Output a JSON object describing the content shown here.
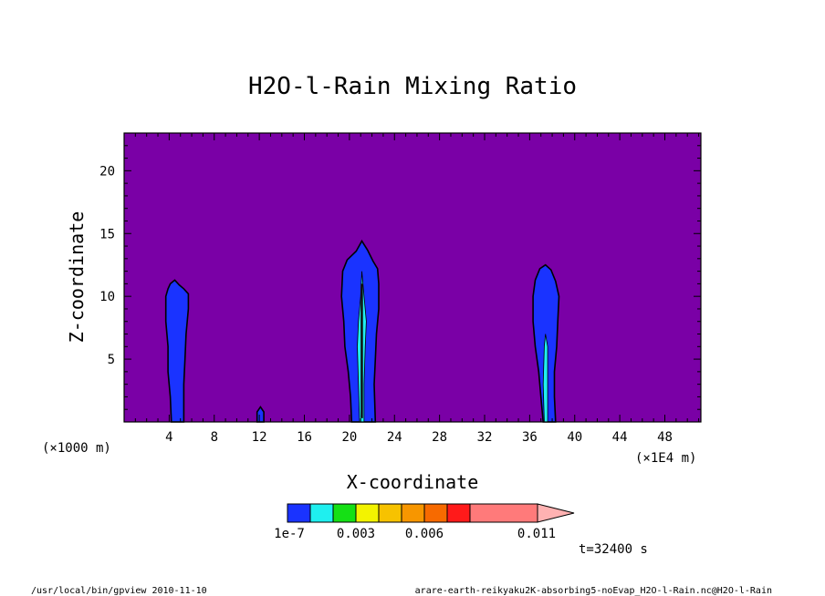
{
  "chart_data": {
    "type": "heatmap",
    "title": "H2O-l-Rain Mixing Ratio",
    "xlabel": "X-coordinate",
    "ylabel": "Z-coordinate",
    "x_unit_left": "(×1000 m)",
    "x_unit_right": "(×1E4 m)",
    "xlim": [
      0,
      51.2
    ],
    "ylim": [
      0,
      23
    ],
    "x_ticks": [
      4,
      8,
      12,
      16,
      20,
      24,
      28,
      32,
      36,
      40,
      44,
      48
    ],
    "x_tick_labels": [
      "4",
      "8",
      "12",
      "16",
      "20",
      "24",
      "28",
      "32",
      "36",
      "40",
      "44",
      "48"
    ],
    "y_ticks": [
      5,
      10,
      15,
      20
    ],
    "y_tick_labels": [
      "5",
      "10",
      "15",
      "20"
    ],
    "time_label": "t=32400 s",
    "colorbar": {
      "label_values": [
        "1e-7",
        "0.003",
        "0.006",
        "0.011"
      ],
      "colors": [
        "#1a33ff",
        "#1fefef",
        "#15e015",
        "#f3f300",
        "#f7c200",
        "#f79600",
        "#f76a00",
        "#ff1a1a",
        "#ff7a7a",
        "#ffb2b2"
      ]
    },
    "background_color": "#7a00a6",
    "contour_level_value": 1e-07,
    "plumes": [
      {
        "name": "plume-1",
        "center_x": 4.7,
        "top_z": 11.3,
        "outline": [
          [
            4.2,
            0
          ],
          [
            4.1,
            2
          ],
          [
            3.9,
            4
          ],
          [
            3.9,
            6
          ],
          [
            3.7,
            8
          ],
          [
            3.7,
            10
          ],
          [
            3.9,
            10.6
          ],
          [
            4.1,
            11
          ],
          [
            4.5,
            11.3
          ],
          [
            4.9,
            10.9
          ],
          [
            5.3,
            10.6
          ],
          [
            5.7,
            10.2
          ],
          [
            5.7,
            9
          ],
          [
            5.5,
            7
          ],
          [
            5.4,
            5
          ],
          [
            5.3,
            3
          ],
          [
            5.3,
            0
          ]
        ]
      },
      {
        "name": "plume-2",
        "center_x": 12.1,
        "top_z": 1.2,
        "outline": [
          [
            11.8,
            0
          ],
          [
            11.8,
            0.8
          ],
          [
            12.1,
            1.2
          ],
          [
            12.4,
            0.8
          ],
          [
            12.4,
            0
          ]
        ]
      },
      {
        "name": "plume-3",
        "center_x": 21.2,
        "top_z": 14.4,
        "outline": [
          [
            20.2,
            0
          ],
          [
            20.1,
            2
          ],
          [
            19.9,
            4
          ],
          [
            19.6,
            6
          ],
          [
            19.5,
            8
          ],
          [
            19.3,
            10
          ],
          [
            19.4,
            12
          ],
          [
            19.8,
            12.9
          ],
          [
            20.6,
            13.6
          ],
          [
            21.1,
            14.4
          ],
          [
            21.6,
            13.7
          ],
          [
            22.1,
            12.8
          ],
          [
            22.5,
            12.2
          ],
          [
            22.6,
            11
          ],
          [
            22.6,
            9
          ],
          [
            22.4,
            7
          ],
          [
            22.3,
            5
          ],
          [
            22.2,
            3
          ],
          [
            22.3,
            0
          ]
        ]
      },
      {
        "name": "plume-4",
        "center_x": 37.4,
        "top_z": 12.5,
        "outline": [
          [
            37.2,
            0
          ],
          [
            37.0,
            2
          ],
          [
            36.8,
            4
          ],
          [
            36.5,
            6
          ],
          [
            36.3,
            8
          ],
          [
            36.3,
            10
          ],
          [
            36.5,
            11.3
          ],
          [
            36.9,
            12.2
          ],
          [
            37.4,
            12.5
          ],
          [
            37.9,
            12.1
          ],
          [
            38.3,
            11.2
          ],
          [
            38.6,
            10
          ],
          [
            38.5,
            8
          ],
          [
            38.4,
            6
          ],
          [
            38.2,
            4
          ],
          [
            38.2,
            2
          ],
          [
            38.3,
            0
          ]
        ]
      }
    ],
    "cores": [
      {
        "name": "core-plume-3",
        "outline": [
          [
            20.9,
            0
          ],
          [
            20.8,
            3
          ],
          [
            20.7,
            6
          ],
          [
            20.8,
            8
          ],
          [
            21.0,
            10
          ],
          [
            21.1,
            12
          ],
          [
            21.3,
            10
          ],
          [
            21.5,
            8
          ],
          [
            21.4,
            6
          ],
          [
            21.3,
            3
          ],
          [
            21.3,
            0
          ]
        ],
        "color": "#1fefef"
      },
      {
        "name": "core-plume-4",
        "outline": [
          [
            37.3,
            0
          ],
          [
            37.2,
            3
          ],
          [
            37.3,
            6
          ],
          [
            37.4,
            7
          ],
          [
            37.6,
            6
          ],
          [
            37.6,
            3
          ],
          [
            37.6,
            0
          ]
        ],
        "color": "#1fefef"
      }
    ]
  },
  "footer": {
    "left": "/usr/local/bin/gpview  2010-11-10",
    "right": "arare-earth-reikyaku2K-absorbing5-noEvap_H2O-l-Rain.nc@H2O-l-Rain"
  }
}
